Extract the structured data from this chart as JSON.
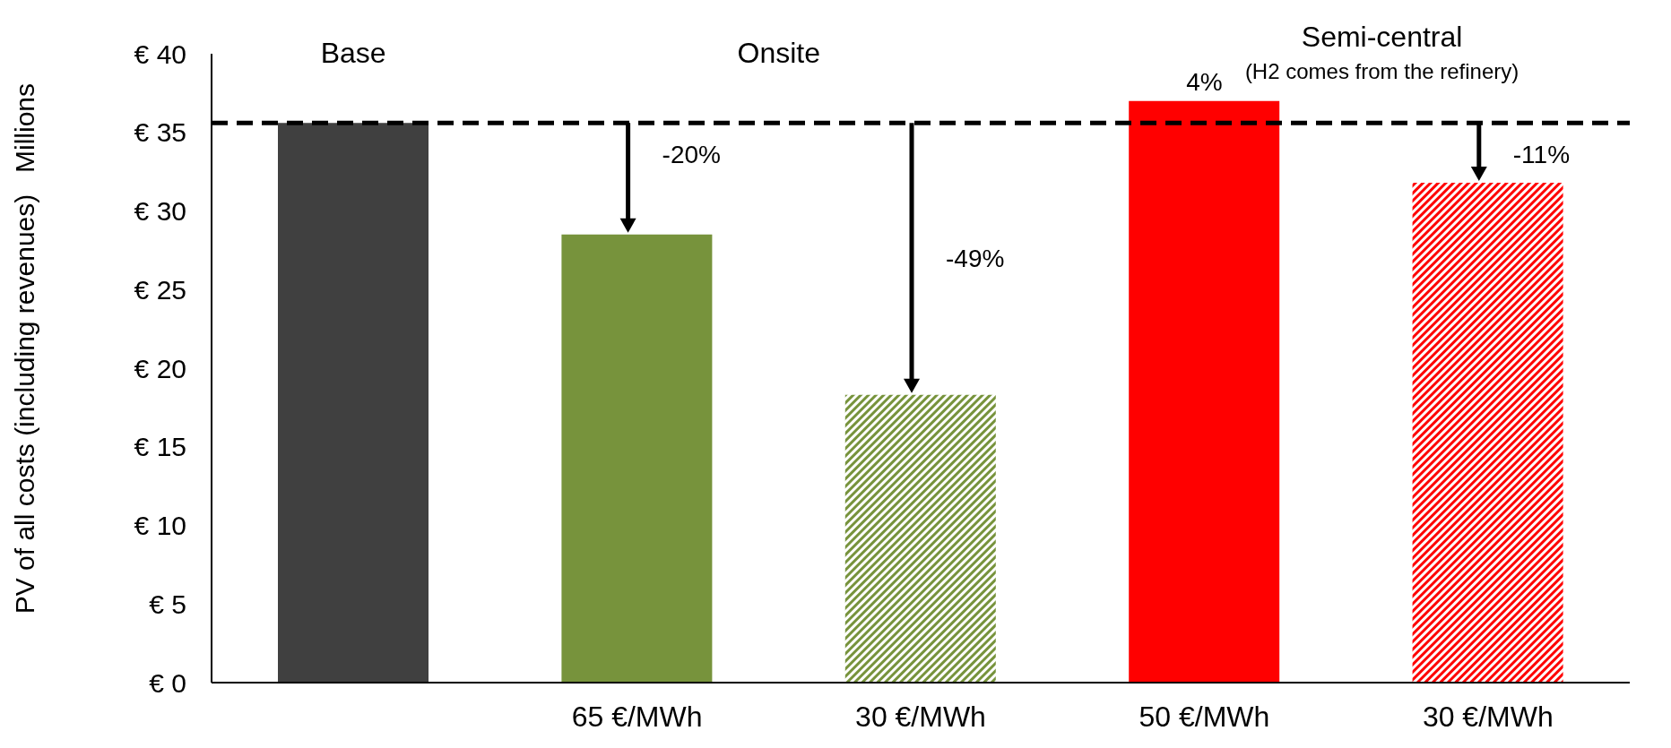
{
  "chart_data": {
    "type": "bar",
    "ylabel": "PV of all costs (including revenues)",
    "categories": [
      null,
      "65 €/MWh",
      "30 €/MWh",
      "50 €/MWh",
      "30 €/MWh"
    ],
    "values": [
      35.6,
      28.5,
      18.3,
      37.0,
      31.8
    ],
    "colors": [
      "#404040",
      "#77933c",
      "#77933c",
      "#ff0000",
      "#ff0000"
    ],
    "ylim": [
      0,
      40
    ],
    "yticks": [
      {
        "value": 0,
        "label": "€ 0"
      },
      {
        "value": 5,
        "label": "€ 5"
      },
      {
        "value": 10,
        "label": "€ 10"
      },
      {
        "value": 15,
        "label": "€ 15"
      },
      {
        "value": 20,
        "label": "€ 20"
      },
      {
        "value": 25,
        "label": "€ 25"
      },
      {
        "value": 30,
        "label": "€ 30"
      },
      {
        "value": 35,
        "label": "€ 35"
      },
      {
        "value": 40,
        "label": "€ 40"
      }
    ],
    "ref_lines": [
      {
        "axis": "y",
        "value": 35.6,
        "color": "#000000",
        "line_style": "dashed"
      }
    ],
    "annotations": [
      "Millions",
      "Base",
      "Onsite",
      "Semi-central",
      "(H2 comes from the refinery)",
      "-20%",
      "-49%",
      "4%",
      "-11%"
    ],
    "grid": false,
    "legend": false
  }
}
